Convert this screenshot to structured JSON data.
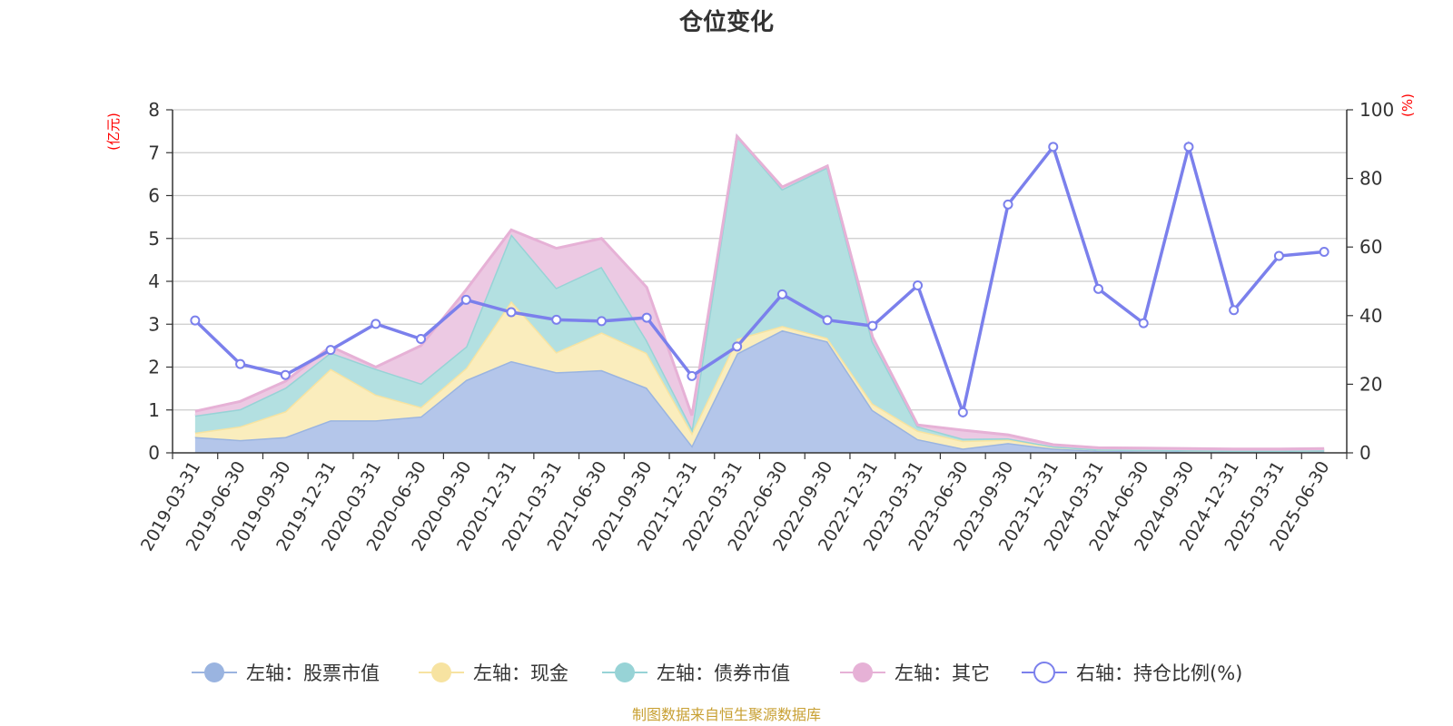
{
  "chart_data": {
    "type": "area",
    "title": "仓位变化",
    "left_axis_unit": "(亿元)",
    "right_axis_unit": "(%)",
    "ylim_left": [
      0,
      8
    ],
    "yticks_left": [
      0,
      1,
      2,
      3,
      4,
      5,
      6,
      7,
      8
    ],
    "ylim_right": [
      0,
      100
    ],
    "yticks_right": [
      0,
      20,
      40,
      60,
      80,
      100
    ],
    "grid": true,
    "legend_position": "bottom",
    "stacked": true,
    "categories": [
      "2019-03-31",
      "2019-06-30",
      "2019-09-30",
      "2019-12-31",
      "2020-03-31",
      "2020-06-30",
      "2020-09-30",
      "2020-12-31",
      "2021-03-31",
      "2021-06-30",
      "2021-09-30",
      "2021-12-31",
      "2022-03-31",
      "2022-06-30",
      "2022-09-30",
      "2022-12-31",
      "2023-03-31",
      "2023-06-30",
      "2023-09-30",
      "2023-12-31",
      "2024-03-31",
      "2024-06-30",
      "2024-09-30",
      "2024-12-31",
      "2025-03-31",
      "2025-06-30"
    ],
    "series": [
      {
        "name": "左轴：股票市值",
        "axis": "left",
        "kind": "area",
        "color": "#9ab4e0",
        "fill": "#b4c6ea",
        "values": [
          0.37,
          0.3,
          0.37,
          0.76,
          0.76,
          0.85,
          1.7,
          2.14,
          1.88,
          1.93,
          1.52,
          0.17,
          2.32,
          2.86,
          2.6,
          1.0,
          0.32,
          0.1,
          0.23,
          0.1,
          0.05,
          0.04,
          0.03,
          0.03,
          0.03,
          0.04
        ]
      },
      {
        "name": "左轴：现金",
        "axis": "left",
        "kind": "area",
        "color": "#f7e3a1",
        "fill": "#faedbd",
        "values": [
          0.1,
          0.32,
          0.6,
          1.2,
          0.6,
          0.22,
          0.28,
          1.4,
          0.47,
          0.88,
          0.81,
          0.3,
          0.34,
          0.1,
          0.08,
          0.15,
          0.2,
          0.18,
          0.08,
          0.05,
          0.03,
          0.03,
          0.03,
          0.02,
          0.02,
          0.02
        ]
      },
      {
        "name": "左轴：债券市值",
        "axis": "left",
        "kind": "area",
        "color": "#97d3d6",
        "fill": "#b3e0e1",
        "values": [
          0.4,
          0.4,
          0.55,
          0.38,
          0.6,
          0.55,
          0.5,
          1.56,
          1.5,
          1.53,
          0.3,
          0.1,
          4.72,
          3.19,
          3.98,
          1.45,
          0.1,
          0.05,
          0.03,
          0.0,
          0.0,
          0.0,
          0.0,
          0.0,
          0.0,
          0.0
        ]
      },
      {
        "name": "左轴：其它",
        "axis": "left",
        "kind": "area",
        "color": "#e6b1d6",
        "fill": "#ecc9e3",
        "values": [
          0.1,
          0.18,
          0.15,
          0.14,
          0.04,
          0.88,
          1.32,
          0.1,
          0.92,
          0.66,
          1.23,
          0.3,
          0.0,
          0.05,
          0.03,
          0.1,
          0.03,
          0.2,
          0.08,
          0.04,
          0.04,
          0.04,
          0.04,
          0.04,
          0.04,
          0.04
        ]
      },
      {
        "name": "右轴：持仓比例(%)",
        "axis": "right",
        "kind": "line",
        "color": "#7b80ec",
        "values": [
          38.6,
          25.9,
          22.7,
          30.0,
          37.6,
          33.2,
          44.6,
          41.0,
          38.8,
          38.4,
          39.4,
          22.4,
          31.0,
          46.2,
          38.7,
          37.0,
          48.8,
          11.8,
          72.4,
          89.2,
          47.8,
          37.8,
          89.2,
          41.6,
          57.4,
          58.6
        ]
      }
    ],
    "source_note": "制图数据来自恒生聚源数据库"
  }
}
